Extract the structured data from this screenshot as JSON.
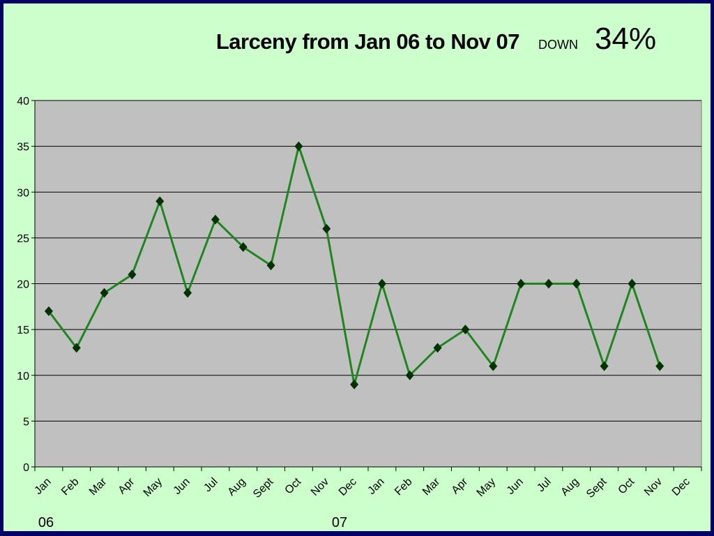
{
  "chart_data": {
    "type": "line",
    "title": "Larceny from Jan 06 to Nov 07",
    "annotations": [
      "DOWN",
      "34%"
    ],
    "categories": [
      "Jan",
      "Feb",
      "Mar",
      "Apr",
      "May",
      "Jun",
      "Jul",
      "Aug",
      "Sept",
      "Oct",
      "Nov",
      "Dec",
      "Jan",
      "Feb",
      "Mar",
      "Apr",
      "May",
      "Jun",
      "Jul",
      "Aug",
      "Sept",
      "Oct",
      "Nov",
      "Dec"
    ],
    "year_labels": [
      "06",
      "07"
    ],
    "series": [
      {
        "name": "Larceny",
        "color": "#1e861e",
        "marker_color": "#003300",
        "values": [
          17,
          13,
          19,
          21,
          29,
          19,
          27,
          24,
          22,
          35,
          26,
          9,
          20,
          10,
          13,
          15,
          11,
          20,
          20,
          20,
          11,
          20,
          11,
          null
        ]
      }
    ],
    "ylim": [
      0,
      40
    ],
    "yticks": [
      0,
      5,
      10,
      15,
      20,
      25,
      30,
      35,
      40
    ],
    "grid": true
  }
}
